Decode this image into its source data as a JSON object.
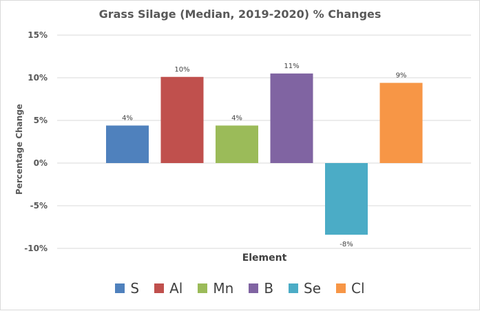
{
  "chart_data": {
    "type": "bar",
    "title": "Grass Silage (Median, 2019-2020) % Changes",
    "xlabel": "Element",
    "ylabel": "Percentage Change",
    "categories": [
      "S",
      "Al",
      "Mn",
      "B",
      "Se",
      "Cl"
    ],
    "values": [
      4.4,
      10.1,
      4.4,
      10.5,
      -8.4,
      9.4
    ],
    "data_labels": [
      "4%",
      "10%",
      "4%",
      "11%",
      "-8%",
      "9%"
    ],
    "colors": [
      "#4f81bd",
      "#c0504d",
      "#9bbb59",
      "#8064a2",
      "#4bacc6",
      "#f79646"
    ],
    "ylim": [
      -10,
      15
    ],
    "yticks": [
      15,
      10,
      5,
      0,
      -5,
      -10
    ],
    "ytick_labels": [
      "15%",
      "10%",
      "5%",
      "0%",
      "-5%",
      "-10%"
    ],
    "grid": true,
    "legend_position": "bottom"
  }
}
